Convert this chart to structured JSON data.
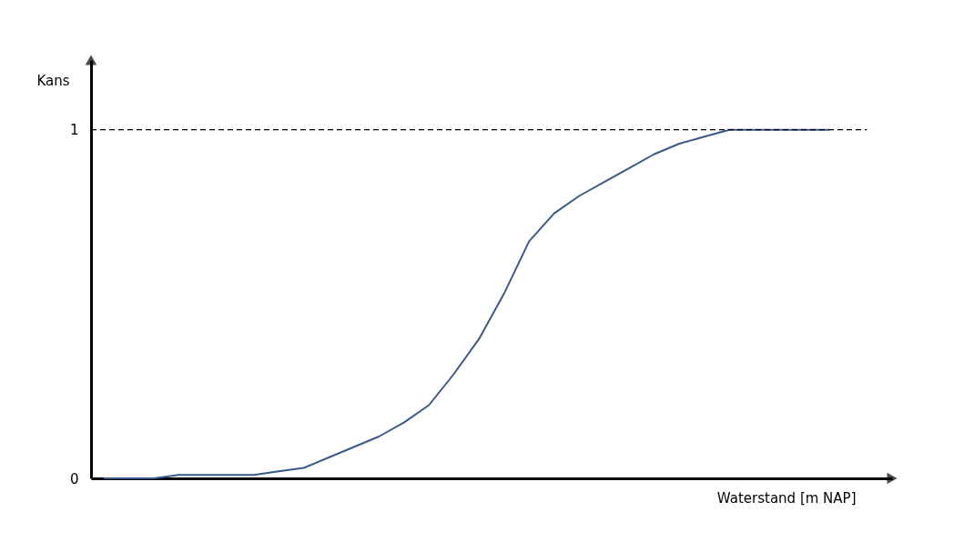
{
  "chart_data": {
    "type": "line",
    "xlabel": "Waterstand [m NAP]",
    "ylabel": "Kans",
    "categories": [
      null,
      null,
      null,
      null,
      null,
      null,
      null,
      null,
      null,
      null,
      null,
      null,
      null,
      null,
      null,
      null,
      null,
      null,
      null,
      null,
      null,
      null,
      null,
      null,
      null,
      null,
      null,
      null,
      null,
      null
    ],
    "values": [
      0,
      0,
      0,
      0.01,
      0.01,
      0.01,
      0.01,
      0.02,
      0.03,
      0.06,
      0.09,
      0.12,
      0.16,
      0.21,
      0.3,
      0.4,
      0.53,
      0.68,
      0.76,
      0.81,
      0.85,
      0.89,
      0.93,
      0.96,
      0.98,
      1,
      1,
      1,
      1,
      1
    ],
    "color": "#3a5a8c",
    "ylim": [
      0,
      1.2
    ],
    "yticks": [
      0,
      1
    ],
    "grid": false,
    "tick_labels": "y",
    "ref_lines": [
      {
        "axis": "y",
        "value": 1,
        "line_style": "dashed",
        "color": "#000000"
      }
    ]
  }
}
